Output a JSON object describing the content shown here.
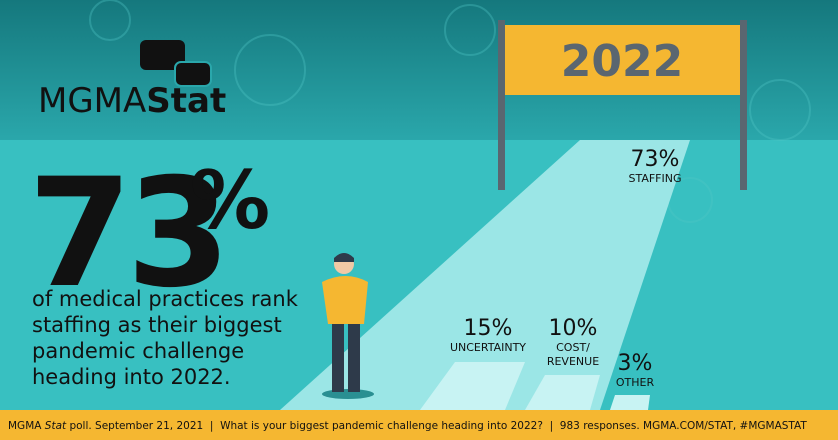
{
  "logo": {
    "text_a": "MGMA",
    "text_b": "Stat"
  },
  "banner": "2022",
  "headline": {
    "value": "73",
    "unit": "%",
    "lines": [
      "of medical practices rank",
      "staffing as their biggest",
      "pandemic challenge",
      "heading into 2022."
    ]
  },
  "results": [
    {
      "value": "73%",
      "label": [
        "STAFFING"
      ]
    },
    {
      "value": "15%",
      "label": [
        "UNCERTAINTY"
      ]
    },
    {
      "value": "10%",
      "label": [
        "COST/",
        "REVENUE"
      ]
    },
    {
      "value": "3%",
      "label": [
        "OTHER"
      ]
    }
  ],
  "footer": {
    "a": "MGMA ",
    "b": "Stat",
    "c": " poll. September 21, 2021  |  What is your biggest pandemic challenge heading into 2022?  |  983 responses. MGMA.COM/STAT, #MGMASTAT"
  }
}
